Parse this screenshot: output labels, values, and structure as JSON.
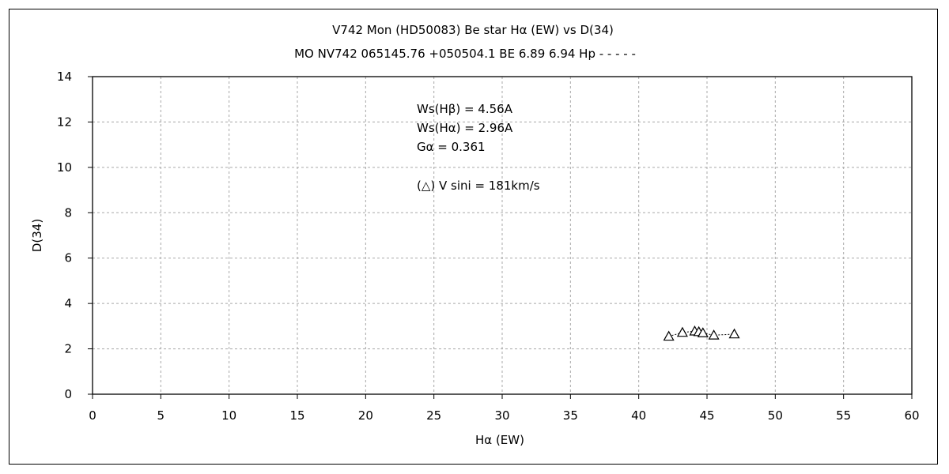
{
  "chart_data": {
    "type": "scatter",
    "title": "V742 Mon (HD50083)    Be star    Hα (EW) vs D(34)",
    "subtitle": "MO NV742 065145.76 +050504.1 BE 6.89 6.94 Hp - - - - -",
    "xlabel": "Hα (EW)",
    "ylabel": "D(34)",
    "xlim": [
      0,
      60
    ],
    "ylim": [
      0,
      14
    ],
    "xticks": [
      0,
      5,
      10,
      15,
      20,
      25,
      30,
      35,
      40,
      45,
      50,
      55,
      60
    ],
    "yticks": [
      0,
      2,
      4,
      6,
      8,
      10,
      12,
      14
    ],
    "grid": true,
    "marker": "triangle-open",
    "connected": true,
    "x": [
      42.2,
      43.2,
      44.1,
      44.4,
      44.7,
      45.5,
      47.0
    ],
    "y": [
      2.55,
      2.72,
      2.78,
      2.75,
      2.7,
      2.6,
      2.65
    ],
    "annotations": [
      "Ws(Hβ) = 4.56A",
      "Ws(Hα) = 2.96A",
      "Gα = 0.361",
      "(△) V sini = 181km/s"
    ]
  }
}
